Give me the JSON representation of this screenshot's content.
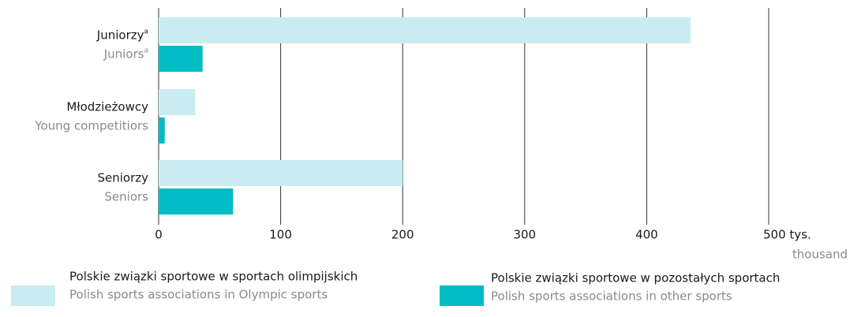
{
  "chart_data": {
    "type": "hbar",
    "categories": [
      {
        "pl": "Juniorzy",
        "en": "Juniors",
        "note": "a"
      },
      {
        "pl": "Młodzieżowcy",
        "en": "Young competitiors"
      },
      {
        "pl": "Seniorzy",
        "en": "Seniors"
      }
    ],
    "series": [
      {
        "name": "Polskie związki sportowe w sportach olimpijskich",
        "name_en": "Polish sports associations in Olympic sports",
        "color": "#c8ecf0",
        "values": [
          436,
          30,
          200
        ]
      },
      {
        "name": "Polskie związki sportowe w pozostałych sportach",
        "name_en": "Polish sports associations in other sports",
        "color": "#00bcc4",
        "values": [
          36,
          5,
          61
        ]
      }
    ],
    "xlim": [
      0,
      500
    ],
    "xticks": [
      0,
      100,
      200,
      300,
      400,
      {
        "value": 500,
        "label": "500 tys."
      }
    ],
    "x_unit_en": "thousand",
    "grid": true
  }
}
